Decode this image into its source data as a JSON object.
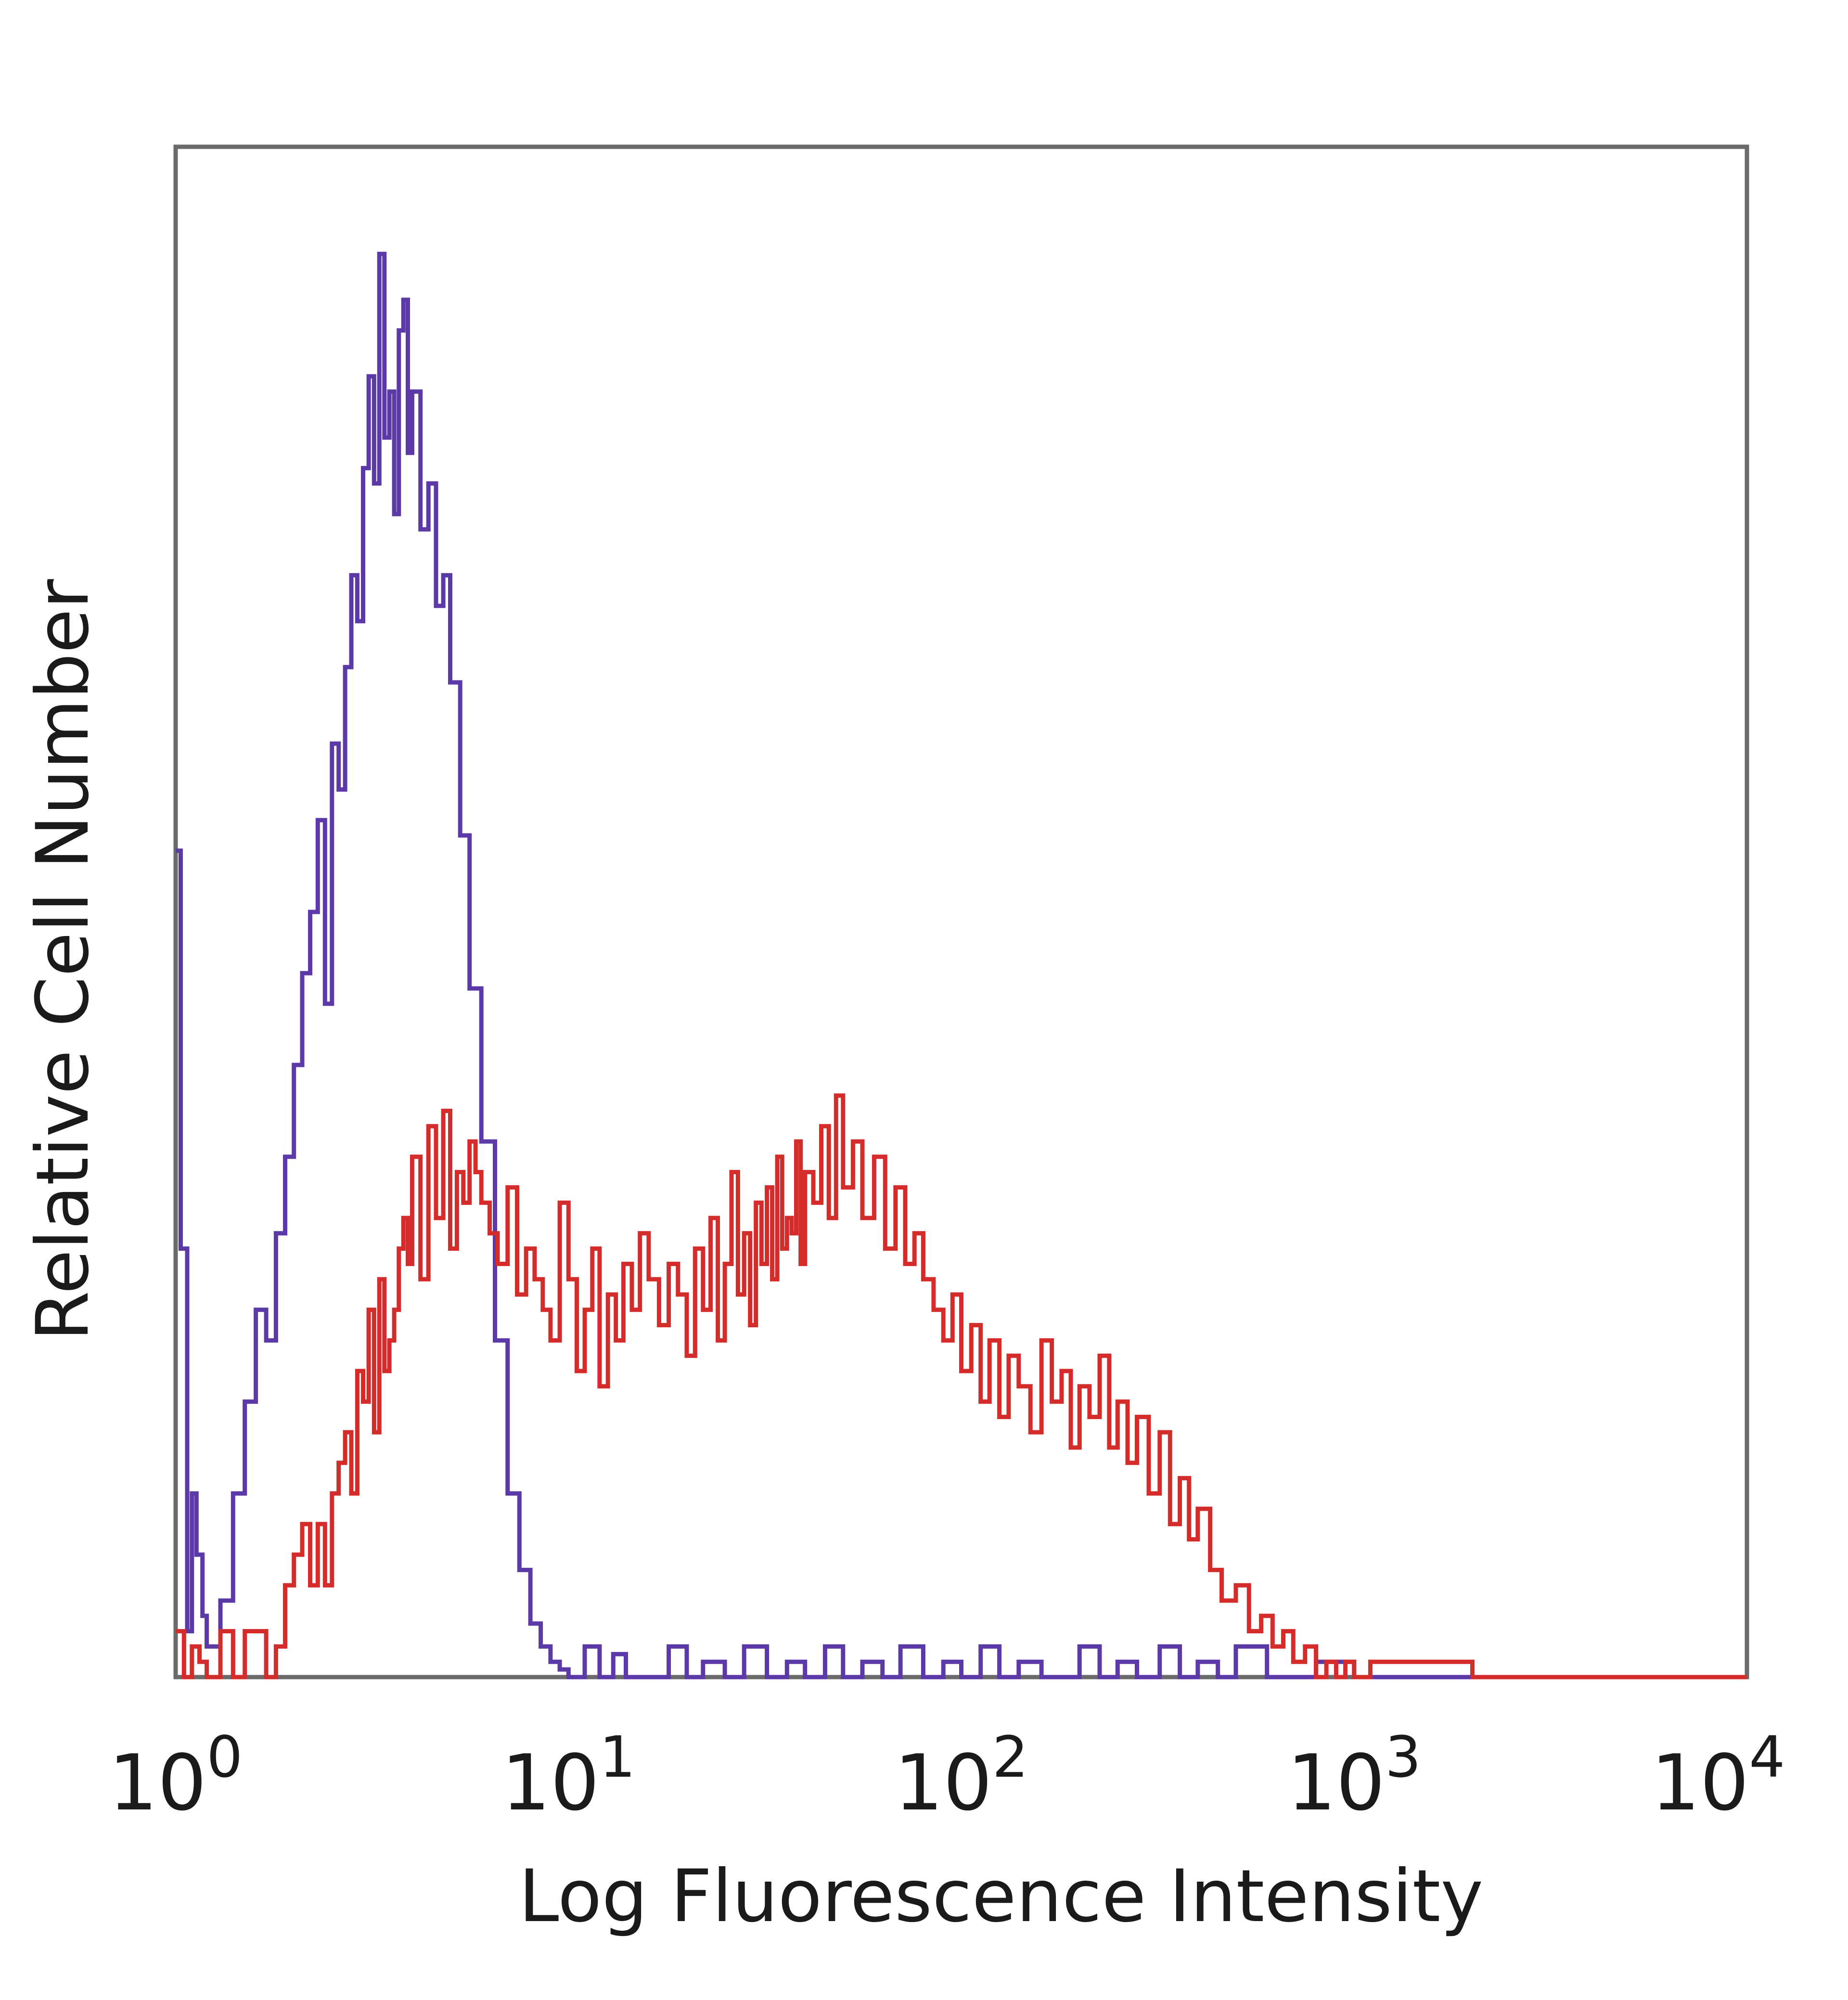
{
  "chart_data": {
    "type": "line",
    "title": "",
    "xlabel": "Log Fluorescence Intensity",
    "ylabel": "Relative Cell Number",
    "x_scale": "log",
    "xlim": [
      1,
      10000
    ],
    "ylim": [
      0,
      100
    ],
    "grid": false,
    "legend": "none",
    "x_ticks": [
      {
        "base": "10",
        "exp": "0"
      },
      {
        "base": "10",
        "exp": "1"
      },
      {
        "base": "10",
        "exp": "2"
      },
      {
        "base": "10",
        "exp": "3"
      },
      {
        "base": "10",
        "exp": "4"
      }
    ],
    "series": [
      {
        "color": "#5b3aa8",
        "x": [
          1.0,
          1.03,
          1.07,
          1.1,
          1.13,
          1.17,
          1.2,
          1.3,
          1.4,
          1.5,
          1.6,
          1.7,
          1.8,
          1.9,
          2.0,
          2.1,
          2.2,
          2.3,
          2.4,
          2.5,
          2.6,
          2.7,
          2.8,
          2.9,
          3.0,
          3.1,
          3.2,
          3.3,
          3.4,
          3.5,
          3.6,
          3.7,
          3.8,
          3.9,
          4.0,
          4.2,
          4.4,
          4.6,
          4.8,
          5.0,
          5.3,
          5.6,
          6.0,
          6.5,
          7.0,
          7.5,
          8.0,
          8.5,
          9.0,
          9.5,
          10.0,
          11.0,
          12.0,
          13.0,
          14.0,
          16.0,
          18.0,
          20.0,
          22.0,
          25.0,
          28.0,
          32.0,
          36.0,
          40.0,
          45.0,
          50.0,
          56.0,
          63.0,
          70.0,
          80.0,
          90.0,
          100.0,
          112.0,
          125.0,
          140.0,
          160.0,
          180.0,
          200.0,
          225.0,
          250.0,
          280.0,
          320.0,
          360.0,
          400.0,
          450.0,
          500.0,
          600.0,
          700.0,
          800.0,
          1000.0,
          2000.0,
          5000.0,
          10000.0
        ],
        "y": [
          54,
          28,
          3,
          12,
          8,
          4,
          2,
          5,
          12,
          18,
          24,
          22,
          29,
          34,
          40,
          46,
          50,
          56,
          44,
          61,
          58,
          66,
          72,
          69,
          79,
          85,
          78,
          93,
          81,
          84,
          76,
          88,
          90,
          80,
          84,
          75,
          78,
          70,
          72,
          65,
          55,
          45,
          35,
          22,
          12,
          7,
          3.5,
          2,
          1,
          0.5,
          0,
          2,
          0,
          1.5,
          0,
          0,
          2,
          0,
          1,
          0,
          2,
          0,
          1,
          0,
          2,
          0,
          1,
          0,
          2,
          0,
          1,
          0,
          2,
          0,
          1,
          0,
          0,
          2,
          0,
          1,
          0,
          2,
          0,
          1,
          0,
          2,
          0,
          0,
          1,
          0,
          0,
          0,
          0
        ]
      },
      {
        "color": "#d42b2b",
        "x": [
          1.0,
          1.05,
          1.1,
          1.15,
          1.2,
          1.3,
          1.4,
          1.5,
          1.6,
          1.7,
          1.8,
          1.9,
          2.0,
          2.1,
          2.2,
          2.3,
          2.4,
          2.5,
          2.6,
          2.7,
          2.8,
          2.9,
          3.0,
          3.1,
          3.2,
          3.3,
          3.4,
          3.5,
          3.6,
          3.7,
          3.8,
          3.9,
          4.0,
          4.2,
          4.4,
          4.6,
          4.8,
          5.0,
          5.2,
          5.4,
          5.6,
          5.8,
          6.0,
          6.3,
          6.6,
          7.0,
          7.4,
          7.8,
          8.2,
          8.6,
          9.0,
          9.5,
          10.0,
          10.5,
          11.0,
          11.5,
          12.0,
          12.6,
          13.2,
          13.8,
          14.5,
          15.2,
          16.0,
          17.0,
          18.0,
          19.0,
          20.0,
          21.0,
          22.0,
          23.0,
          24.0,
          25.0,
          26.0,
          27.0,
          28.0,
          29.0,
          30.0,
          31.0,
          32.0,
          33.0,
          34.0,
          35.0,
          36.0,
          37.0,
          38.0,
          39.0,
          40.0,
          42.0,
          44.0,
          46.0,
          48.0,
          50.0,
          53.0,
          56.0,
          60.0,
          64.0,
          68.0,
          72.0,
          76.0,
          80.0,
          85.0,
          90.0,
          95.0,
          100.0,
          106.0,
          112.0,
          118.0,
          125.0,
          132.0,
          140.0,
          150.0,
          160.0,
          170.0,
          180.0,
          190.0,
          200.0,
          212.0,
          225.0,
          238.0,
          250.0,
          265.0,
          280.0,
          300.0,
          320.0,
          340.0,
          360.0,
          380.0,
          400.0,
          430.0,
          460.0,
          500.0,
          540.0,
          580.0,
          620.0,
          660.0,
          700.0,
          750.0,
          800.0,
          850.0,
          900.0,
          950.0,
          1000.0,
          1050.0,
          1100.0,
          2000.0,
          10000.0
        ],
        "y": [
          3,
          0,
          2,
          1,
          0,
          3,
          0,
          3,
          3,
          0,
          2,
          6,
          8,
          10,
          6,
          10,
          6,
          12,
          14,
          16,
          12,
          20,
          18,
          24,
          16,
          26,
          20,
          22,
          24,
          28,
          30,
          27,
          34,
          26,
          36,
          30,
          37,
          28,
          33,
          31,
          35,
          33,
          31,
          29,
          27,
          32,
          25,
          28,
          26,
          24,
          22,
          31,
          26,
          20,
          24,
          28,
          19,
          25,
          22,
          27,
          24,
          29,
          26,
          23,
          27,
          25,
          21,
          28,
          24,
          30,
          22,
          27,
          33,
          25,
          29,
          23,
          31,
          27,
          32,
          26,
          34,
          28,
          30,
          29,
          35,
          27,
          33,
          31,
          36,
          30,
          38,
          32,
          35,
          30,
          34,
          28,
          32,
          27,
          29,
          26,
          24,
          22,
          25,
          20,
          23,
          18,
          22,
          17,
          21,
          19,
          16,
          22,
          18,
          20,
          15,
          19,
          17,
          21,
          15,
          18,
          14,
          17,
          12,
          16,
          10,
          13,
          9,
          11,
          7,
          5,
          6,
          3,
          4,
          2,
          3,
          1,
          2,
          0,
          1,
          0,
          1,
          0,
          0,
          1,
          0,
          0
        ]
      }
    ]
  }
}
